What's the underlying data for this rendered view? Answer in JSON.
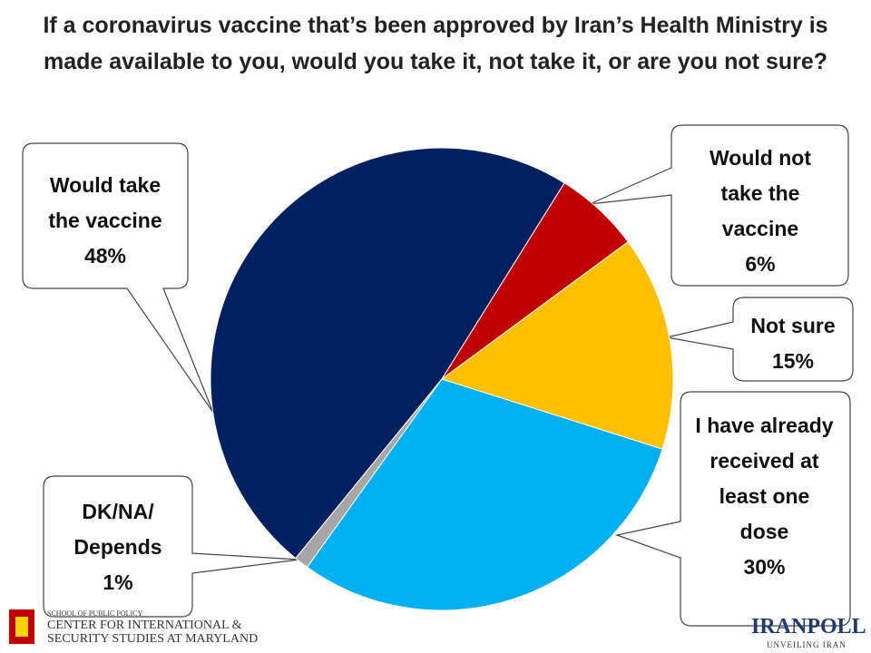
{
  "chart_data": {
    "type": "pie",
    "title": "If a coronavirus vaccine that’s been approved by Iran’s Health Ministry is made available to you, would you take it, not take it, or are you not sure?",
    "categories": [
      "Would take the vaccine",
      "Would not take the vaccine",
      "Not sure",
      "I have already received at least one dose",
      "DK/NA/ Depends"
    ],
    "values": [
      48,
      6,
      15,
      30,
      1
    ],
    "value_labels": [
      "48%",
      "6%",
      "15%",
      "30%",
      "1%"
    ],
    "colors": [
      "#002060",
      "#c00000",
      "#ffc000",
      "#00b0f0",
      "#a6a6a6"
    ]
  },
  "logos": {
    "school": "SCHOOL OF PUBLIC POLICY",
    "center_line1": "CENTER FOR INTERNATIONAL &",
    "center_line2": "SECURITY STUDIES AT MARYLAND",
    "iranpoll": "IRANPOLL",
    "iranpoll_tagline": "UNVEILING IRAN"
  }
}
